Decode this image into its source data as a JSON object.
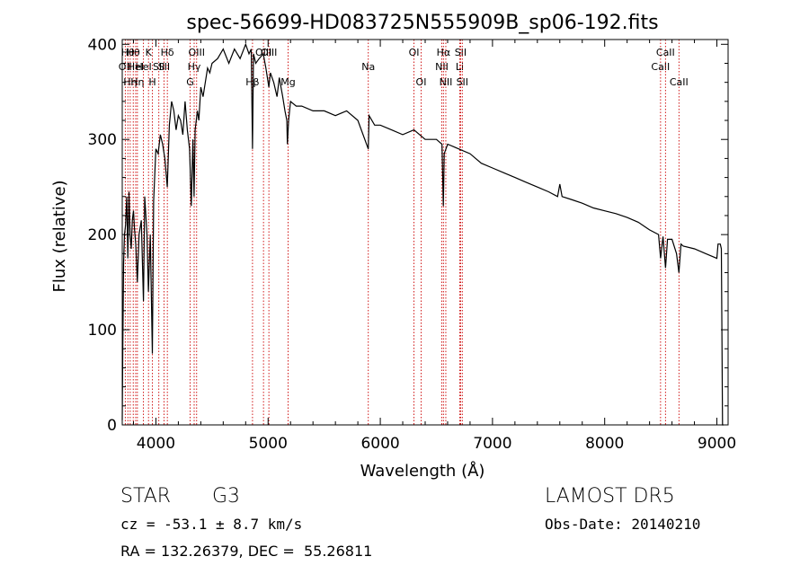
{
  "chart_data": {
    "type": "line",
    "title": "spec-56699-HD083725N555909B_sp06-192.fits",
    "xlabel": "Wavelength (Å)",
    "ylabel": "Flux (relative)",
    "xlim": [
      3700,
      9100
    ],
    "ylim": [
      0,
      405
    ],
    "xticks": [
      4000,
      5000,
      6000,
      7000,
      8000,
      9000
    ],
    "yticks": [
      0,
      100,
      200,
      300,
      400
    ],
    "grid": false,
    "line_color": "#000000",
    "marker_color": "#cc0000",
    "series": [
      {
        "x": [
          3700,
          3705,
          3712,
          3720,
          3730,
          3740,
          3750,
          3760,
          3770,
          3780,
          3790,
          3800,
          3810,
          3820,
          3835,
          3850,
          3870,
          3889,
          3900,
          3920,
          3933,
          3950,
          3968,
          3980,
          4000,
          4020,
          4040,
          4060,
          4080,
          4101,
          4120,
          4140,
          4160,
          4180,
          4200,
          4220,
          4240,
          4260,
          4280,
          4300,
          4315,
          4330,
          4340,
          4350,
          4370,
          4383,
          4400,
          4420,
          4440,
          4460,
          4480,
          4500,
          4550,
          4600,
          4650,
          4700,
          4750,
          4800,
          4830,
          4850,
          4861,
          4870,
          4890,
          4920,
          4957,
          4980,
          5007,
          5020,
          5050,
          5080,
          5100,
          5130,
          5150,
          5167,
          5172,
          5183,
          5200,
          5250,
          5300,
          5400,
          5500,
          5600,
          5700,
          5800,
          5893,
          5900,
          5950,
          6000,
          6100,
          6200,
          6300,
          6400,
          6500,
          6550,
          6562,
          6570,
          6600,
          6700,
          6800,
          6900,
          7000,
          7100,
          7200,
          7300,
          7400,
          7500,
          7580,
          7600,
          7620,
          7700,
          7800,
          7900,
          8000,
          8100,
          8200,
          8300,
          8400,
          8480,
          8498,
          8520,
          8542,
          8560,
          8600,
          8640,
          8662,
          8680,
          8700,
          8800,
          8900,
          9000,
          9010,
          9030,
          9040,
          9050,
          9060
        ],
        "y": [
          5,
          80,
          170,
          200,
          210,
          240,
          175,
          245,
          200,
          185,
          215,
          225,
          205,
          190,
          150,
          200,
          215,
          130,
          240,
          200,
          140,
          200,
          75,
          235,
          290,
          285,
          305,
          295,
          280,
          250,
          315,
          340,
          330,
          310,
          325,
          320,
          305,
          340,
          310,
          290,
          230,
          300,
          240,
          310,
          330,
          320,
          355,
          345,
          360,
          375,
          370,
          380,
          385,
          395,
          380,
          395,
          385,
          400,
          390,
          395,
          290,
          390,
          380,
          385,
          390,
          375,
          355,
          370,
          360,
          345,
          365,
          345,
          330,
          320,
          295,
          320,
          340,
          335,
          335,
          330,
          330,
          325,
          330,
          320,
          290,
          325,
          315,
          315,
          310,
          305,
          310,
          300,
          300,
          295,
          230,
          285,
          295,
          290,
          285,
          275,
          270,
          265,
          260,
          255,
          250,
          245,
          240,
          253,
          240,
          237,
          233,
          228,
          225,
          222,
          218,
          213,
          205,
          200,
          175,
          198,
          165,
          195,
          195,
          180,
          160,
          190,
          188,
          185,
          180,
          175,
          190,
          190,
          185,
          0,
          0
        ]
      }
    ],
    "line_markers": [
      {
        "x": 3727,
        "label": "OII",
        "row": 2
      },
      {
        "x": 3750,
        "label": "Hθ",
        "row": 1
      },
      {
        "x": 3771,
        "label": "Hη",
        "row": 3
      },
      {
        "x": 3798,
        "label": "Hθ",
        "row": 1
      },
      {
        "x": 3820,
        "label": "HeI",
        "row": 2
      },
      {
        "x": 3835,
        "label": "Hη",
        "row": 3
      },
      {
        "x": 3889,
        "label": "HeI",
        "row": 2
      },
      {
        "x": 3934,
        "label": "K",
        "row": 1
      },
      {
        "x": 3969,
        "label": "H",
        "row": 3
      },
      {
        "x": 4026,
        "label": "SII",
        "row": 2
      },
      {
        "x": 4072,
        "label": "SII",
        "row": 2
      },
      {
        "x": 4102,
        "label": "Hδ",
        "row": 1
      },
      {
        "x": 4305,
        "label": "G",
        "row": 3
      },
      {
        "x": 4341,
        "label": "Hγ",
        "row": 2
      },
      {
        "x": 4363,
        "label": "OIII",
        "row": 1
      },
      {
        "x": 4861,
        "label": "Hβ",
        "row": 3
      },
      {
        "x": 4959,
        "label": "OIII",
        "row": 1
      },
      {
        "x": 5007,
        "label": "OIII",
        "row": 1
      },
      {
        "x": 5178,
        "label": "Mg",
        "row": 3
      },
      {
        "x": 5893,
        "label": "Na",
        "row": 2
      },
      {
        "x": 6300,
        "label": "OI",
        "row": 1
      },
      {
        "x": 6364,
        "label": "OI",
        "row": 3
      },
      {
        "x": 6548,
        "label": "NII",
        "row": 2
      },
      {
        "x": 6563,
        "label": "Hα",
        "row": 1
      },
      {
        "x": 6584,
        "label": "NII",
        "row": 3
      },
      {
        "x": 6708,
        "label": "Li",
        "row": 2
      },
      {
        "x": 6716,
        "label": "SII",
        "row": 1
      },
      {
        "x": 6731,
        "label": "SII",
        "row": 3
      },
      {
        "x": 8498,
        "label": "CaII",
        "row": 2
      },
      {
        "x": 8542,
        "label": "CaII",
        "row": 1
      },
      {
        "x": 8662,
        "label": "CaII",
        "row": 3
      }
    ]
  },
  "info": {
    "object_class": "STAR",
    "subclass": "G3",
    "redshift_line": "cz = -53.1 ± 8.7 km/s",
    "coords_line": "RA = 132.26379, DEC =  55.26811",
    "survey": "LAMOST DR5",
    "obs_date_line": "Obs-Date: 20140210"
  }
}
